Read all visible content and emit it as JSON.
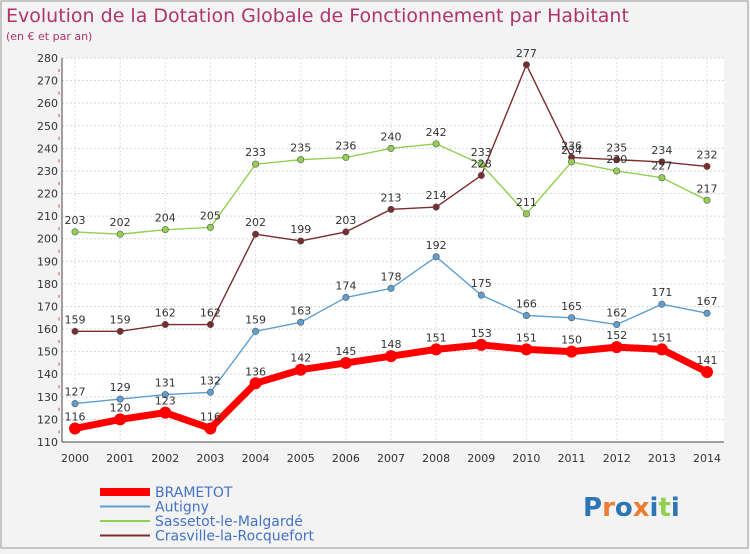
{
  "chart_data": {
    "type": "line",
    "title": "Evolution de la Dotation Globale de Fonctionnement par Habitant",
    "subtitle": "(en € et par an)",
    "xlabel": "",
    "ylabel": "",
    "ylim": [
      110,
      280
    ],
    "yticks": [
      110,
      120,
      130,
      140,
      150,
      160,
      170,
      180,
      190,
      200,
      210,
      220,
      230,
      240,
      250,
      260,
      270,
      280
    ],
    "categories": [
      "2000",
      "2001",
      "2002",
      "2003",
      "2004",
      "2005",
      "2006",
      "2007",
      "2008",
      "2009",
      "2010",
      "2011",
      "2012",
      "2013",
      "2014"
    ],
    "grid": true,
    "legend_position": "bottom-left",
    "series": [
      {
        "name": "BRAMETOT",
        "color": "#ff0000",
        "values": [
          116,
          120,
          123,
          116,
          136,
          142,
          145,
          148,
          151,
          153,
          151,
          150,
          152,
          151,
          141
        ]
      },
      {
        "name": "Autigny",
        "color": "#5e9fd2",
        "values": [
          127,
          129,
          131,
          132,
          159,
          163,
          174,
          178,
          192,
          175,
          166,
          165,
          162,
          171,
          167
        ]
      },
      {
        "name": "Sassetot-le-Malgardé",
        "color": "#92d050",
        "values": [
          203,
          202,
          204,
          205,
          233,
          235,
          236,
          240,
          242,
          233,
          211,
          234,
          230,
          227,
          217
        ]
      },
      {
        "name": "Crasville-la-Rocquefort",
        "color": "#7b2c2c",
        "values": [
          159,
          159,
          162,
          162,
          202,
          199,
          203,
          213,
          214,
          228,
          277,
          236,
          235,
          234,
          232
        ]
      }
    ]
  },
  "logo": {
    "text": "Proxiti"
  }
}
